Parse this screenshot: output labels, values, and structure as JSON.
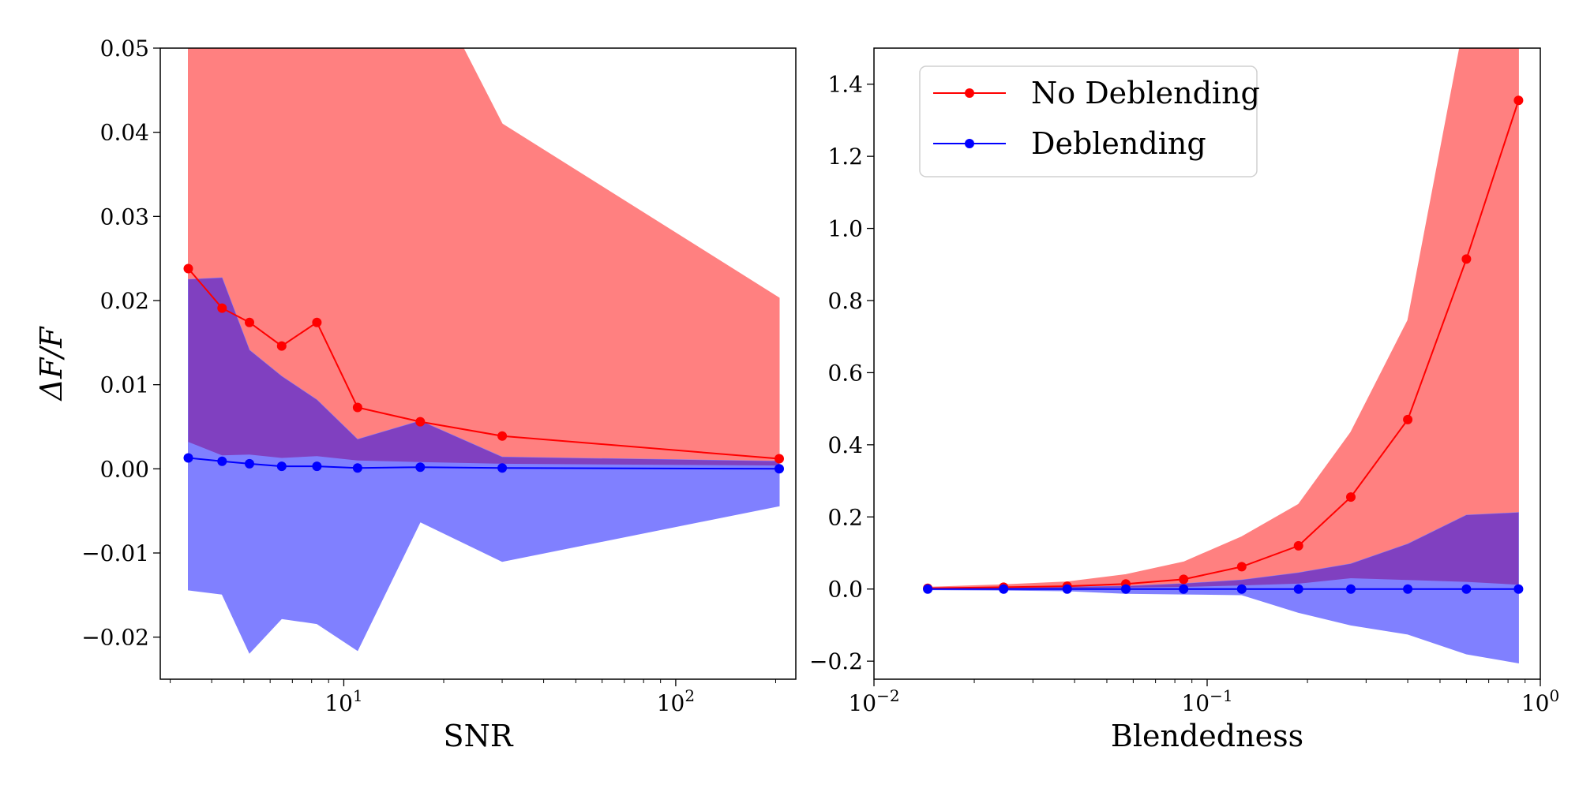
{
  "figure": {
    "ylabel": "ΔF/F",
    "legend": {
      "placement": "upper-left of right panel",
      "items": [
        {
          "label": "No Deblending",
          "color": "#ff0000"
        },
        {
          "label": "Deblending",
          "color": "#0000ff"
        }
      ]
    }
  },
  "colors": {
    "red_line": "#ff0000",
    "blue_line": "#0000ff",
    "red_band": "#ff8080",
    "blue_band": "#8080ff",
    "overlap_band": "#8040c0"
  },
  "chart_data": [
    {
      "type": "line",
      "xlabel": "SNR",
      "ylabel": "ΔF/F",
      "xscale": "log",
      "xlim": [
        2.8,
        230
      ],
      "ylim": [
        -0.025,
        0.05
      ],
      "grid": false,
      "xticks": [
        10,
        100
      ],
      "xtick_labels": [
        "10^1",
        "10^2"
      ],
      "yticks": [
        -0.02,
        -0.01,
        0.0,
        0.01,
        0.02,
        0.03,
        0.04,
        0.05
      ],
      "ytick_labels": [
        "−0.02",
        "−0.01",
        "0.00",
        "0.01",
        "0.02",
        "0.03",
        "0.04",
        "0.05"
      ],
      "x": [
        3.4,
        4.3,
        5.2,
        6.5,
        8.3,
        11,
        17,
        30,
        205
      ],
      "series": [
        {
          "name": "No Deblending",
          "color": "#ff0000",
          "values": [
            0.0238,
            0.0191,
            0.0174,
            0.0146,
            0.0174,
            0.0073,
            0.0056,
            0.0039,
            0.0012
          ],
          "band_upper": [
            0.06,
            0.06,
            0.06,
            0.06,
            0.06,
            0.06,
            0.06,
            0.041,
            0.0203
          ],
          "band_lower": [
            0.0032,
            0.0016,
            0.0017,
            0.0013,
            0.0015,
            0.001,
            0.0008,
            0.0006,
            0.0004
          ]
        },
        {
          "name": "Deblending",
          "color": "#0000ff",
          "values": [
            0.0013,
            0.0009,
            0.0006,
            0.0003,
            0.0003,
            0.0001,
            0.0002,
            0.0001,
            0.0
          ],
          "band_upper": [
            0.0225,
            0.0227,
            0.0141,
            0.011,
            0.0082,
            0.0035,
            0.0057,
            0.0014,
            0.0009
          ],
          "band_lower": [
            -0.0144,
            -0.0149,
            -0.0219,
            -0.0178,
            -0.0184,
            -0.0216,
            -0.0063,
            -0.011,
            -0.0044
          ]
        }
      ]
    },
    {
      "type": "line",
      "xlabel": "Blendedness",
      "ylabel": "",
      "xscale": "log",
      "xlim": [
        0.01,
        1.0
      ],
      "ylim": [
        -0.25,
        1.5
      ],
      "grid": false,
      "xticks": [
        0.01,
        0.1,
        1
      ],
      "xtick_labels": [
        "10^-2",
        "10^-1",
        "10^0"
      ],
      "yticks": [
        -0.2,
        0.0,
        0.2,
        0.4,
        0.6,
        0.8,
        1.0,
        1.2,
        1.4
      ],
      "ytick_labels": [
        "−0.2",
        "0.0",
        "0.2",
        "0.4",
        "0.6",
        "0.8",
        "1.0",
        "1.2",
        "1.4"
      ],
      "x": [
        0.0145,
        0.0245,
        0.038,
        0.057,
        0.085,
        0.127,
        0.188,
        0.27,
        0.4,
        0.6,
        0.86
      ],
      "series": [
        {
          "name": "No Deblending",
          "color": "#ff0000",
          "values": [
            0.002,
            0.005,
            0.008,
            0.014,
            0.027,
            0.062,
            0.12,
            0.255,
            0.47,
            0.915,
            1.355
          ],
          "band_upper": [
            0.005,
            0.012,
            0.02,
            0.04,
            0.075,
            0.145,
            0.235,
            0.435,
            0.745,
            1.6,
            1.6
          ],
          "band_lower": [
            0.0,
            0.001,
            0.002,
            0.004,
            0.006,
            0.01,
            0.015,
            0.03,
            0.025,
            0.02,
            0.012
          ]
        },
        {
          "name": "Deblending",
          "color": "#0000ff",
          "values": [
            0.0,
            0.0,
            0.0,
            0.0,
            0.0,
            0.0,
            0.0,
            0.0,
            0.0,
            0.0,
            0.0
          ],
          "band_upper": [
            0.003,
            0.004,
            0.006,
            0.008,
            0.015,
            0.025,
            0.045,
            0.07,
            0.125,
            0.205,
            0.212
          ],
          "band_lower": [
            -0.002,
            -0.003,
            -0.005,
            -0.012,
            -0.014,
            -0.016,
            -0.065,
            -0.1,
            -0.125,
            -0.18,
            -0.205
          ]
        }
      ]
    }
  ]
}
